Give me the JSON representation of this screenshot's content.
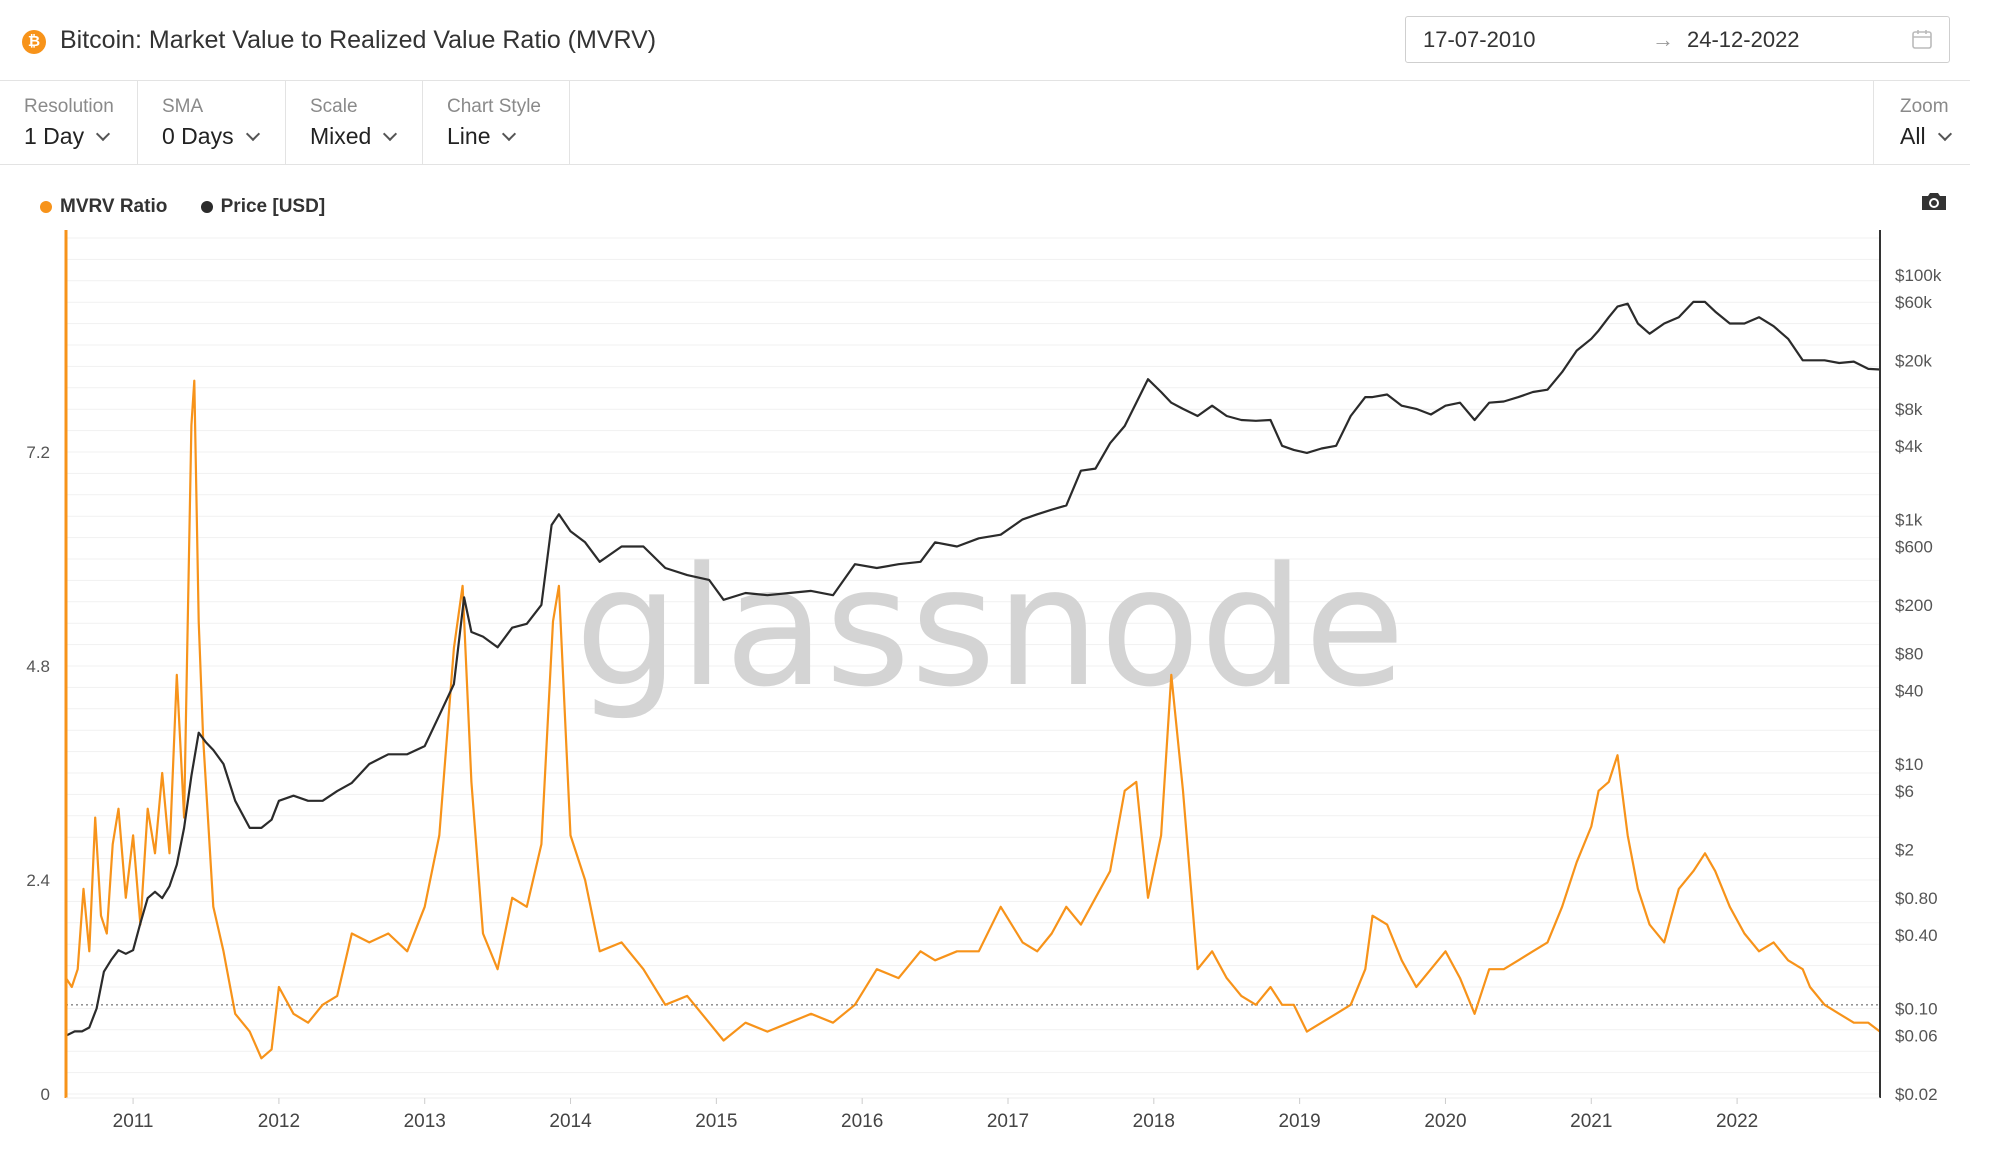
{
  "header": {
    "title": "Bitcoin: Market Value to Realized Value Ratio (MVRV)",
    "logo_glyph": "₿",
    "date_start": "17-07-2010",
    "date_arrow": "→",
    "date_end": "24-12-2022"
  },
  "controls": {
    "resolution": {
      "label": "Resolution",
      "value": "1 Day"
    },
    "sma": {
      "label": "SMA",
      "value": "0 Days"
    },
    "scale": {
      "label": "Scale",
      "value": "Mixed"
    },
    "chart_style": {
      "label": "Chart Style",
      "value": "Line"
    },
    "zoom": {
      "label": "Zoom",
      "value": "All"
    }
  },
  "legend": {
    "mvrv": "MVRV Ratio",
    "price": "Price [USD]"
  },
  "watermark": "glassnode",
  "colors": {
    "mvrv": "#f7931a",
    "price": "#2b2b2b",
    "brand": "#f7931a"
  },
  "chart_data": {
    "type": "line",
    "x_ticks": [
      "2011",
      "2012",
      "2013",
      "2014",
      "2015",
      "2016",
      "2017",
      "2018",
      "2019",
      "2020",
      "2021",
      "2022"
    ],
    "x_range": [
      2010.54,
      2022.98
    ],
    "reference_line": 1,
    "left_axis": {
      "ticks": [
        "0",
        "2.4",
        "4.8",
        "7.2"
      ],
      "tick_values": [
        0,
        2.4,
        4.8,
        7.2
      ],
      "range": [
        0,
        9.6
      ],
      "scale": "linear"
    },
    "right_axis": {
      "ticks": [
        "$100k",
        "$60k",
        "$20k",
        "$8k",
        "$4k",
        "$1k",
        "$600",
        "$200",
        "$80",
        "$40",
        "$10",
        "$6",
        "$2",
        "$0.80",
        "$0.40",
        "$0.10",
        "$0.06",
        "$0.02"
      ],
      "tick_values": [
        100000,
        60000,
        20000,
        8000,
        4000,
        1000,
        600,
        200,
        80,
        40,
        10,
        6,
        2,
        0.8,
        0.4,
        0.1,
        0.06,
        0.02
      ],
      "range": [
        0.02,
        200000
      ],
      "scale": "log"
    },
    "series": [
      {
        "name": "MVRV Ratio",
        "axis": "left",
        "x": [
          2010.54,
          2010.58,
          2010.62,
          2010.66,
          2010.7,
          2010.74,
          2010.78,
          2010.82,
          2010.86,
          2010.9,
          2010.95,
          2011.0,
          2011.05,
          2011.1,
          2011.15,
          2011.2,
          2011.25,
          2011.3,
          2011.35,
          2011.4,
          2011.42,
          2011.45,
          2011.48,
          2011.55,
          2011.62,
          2011.7,
          2011.8,
          2011.88,
          2011.95,
          2012.0,
          2012.1,
          2012.2,
          2012.3,
          2012.4,
          2012.5,
          2012.62,
          2012.75,
          2012.88,
          2013.0,
          2013.1,
          2013.2,
          2013.26,
          2013.32,
          2013.4,
          2013.5,
          2013.6,
          2013.7,
          2013.8,
          2013.88,
          2013.92,
          2014.0,
          2014.1,
          2014.2,
          2014.35,
          2014.5,
          2014.65,
          2014.8,
          2014.95,
          2015.05,
          2015.2,
          2015.35,
          2015.5,
          2015.65,
          2015.8,
          2015.95,
          2016.1,
          2016.25,
          2016.4,
          2016.5,
          2016.65,
          2016.8,
          2016.95,
          2017.1,
          2017.2,
          2017.3,
          2017.4,
          2017.5,
          2017.6,
          2017.7,
          2017.8,
          2017.88,
          2017.96,
          2018.05,
          2018.12,
          2018.2,
          2018.3,
          2018.4,
          2018.5,
          2018.6,
          2018.7,
          2018.8,
          2018.88,
          2018.96,
          2019.05,
          2019.15,
          2019.25,
          2019.35,
          2019.45,
          2019.5,
          2019.6,
          2019.7,
          2019.8,
          2019.9,
          2020.0,
          2020.1,
          2020.2,
          2020.3,
          2020.4,
          2020.5,
          2020.6,
          2020.7,
          2020.8,
          2020.9,
          2021.0,
          2021.05,
          2021.12,
          2021.18,
          2021.25,
          2021.32,
          2021.4,
          2021.5,
          2021.6,
          2021.7,
          2021.78,
          2021.85,
          2021.95,
          2022.05,
          2022.15,
          2022.25,
          2022.35,
          2022.45,
          2022.5,
          2022.6,
          2022.7,
          2022.8,
          2022.9,
          2022.98
        ],
        "values": [
          1.3,
          1.2,
          1.4,
          2.3,
          1.6,
          3.1,
          2.0,
          1.8,
          2.8,
          3.2,
          2.2,
          2.9,
          1.9,
          3.2,
          2.7,
          3.6,
          2.7,
          4.7,
          3.1,
          7.5,
          8.0,
          5.3,
          4.0,
          2.1,
          1.6,
          0.9,
          0.7,
          0.4,
          0.5,
          1.2,
          0.9,
          0.8,
          1.0,
          1.1,
          1.8,
          1.7,
          1.8,
          1.6,
          2.1,
          2.9,
          5.0,
          5.7,
          3.5,
          1.8,
          1.4,
          2.2,
          2.1,
          2.8,
          5.3,
          5.7,
          2.9,
          2.4,
          1.6,
          1.7,
          1.4,
          1.0,
          1.1,
          0.8,
          0.6,
          0.8,
          0.7,
          0.8,
          0.9,
          0.8,
          1.0,
          1.4,
          1.3,
          1.6,
          1.5,
          1.6,
          1.6,
          2.1,
          1.7,
          1.6,
          1.8,
          2.1,
          1.9,
          2.2,
          2.5,
          3.4,
          3.5,
          2.2,
          2.9,
          4.7,
          3.4,
          1.4,
          1.6,
          1.3,
          1.1,
          1.0,
          1.2,
          1.0,
          1.0,
          0.7,
          0.8,
          0.9,
          1.0,
          1.4,
          2.0,
          1.9,
          1.5,
          1.2,
          1.4,
          1.6,
          1.3,
          0.9,
          1.4,
          1.4,
          1.5,
          1.6,
          1.7,
          2.1,
          2.6,
          3.0,
          3.4,
          3.5,
          3.8,
          2.9,
          2.3,
          1.9,
          1.7,
          2.3,
          2.5,
          2.7,
          2.5,
          2.1,
          1.8,
          1.6,
          1.7,
          1.5,
          1.4,
          1.2,
          1.0,
          0.9,
          0.8,
          0.8,
          0.7
        ]
      },
      {
        "name": "Price [USD]",
        "axis": "right",
        "x": [
          2010.54,
          2010.6,
          2010.65,
          2010.7,
          2010.75,
          2010.8,
          2010.85,
          2010.9,
          2010.95,
          2011.0,
          2011.05,
          2011.1,
          2011.15,
          2011.2,
          2011.25,
          2011.3,
          2011.35,
          2011.4,
          2011.45,
          2011.5,
          2011.55,
          2011.62,
          2011.7,
          2011.8,
          2011.88,
          2011.95,
          2012.0,
          2012.1,
          2012.2,
          2012.3,
          2012.4,
          2012.5,
          2012.62,
          2012.75,
          2012.88,
          2013.0,
          2013.1,
          2013.2,
          2013.27,
          2013.32,
          2013.4,
          2013.5,
          2013.6,
          2013.7,
          2013.8,
          2013.87,
          2013.92,
          2014.0,
          2014.1,
          2014.2,
          2014.35,
          2014.5,
          2014.65,
          2014.8,
          2014.95,
          2015.05,
          2015.2,
          2015.35,
          2015.5,
          2015.65,
          2015.8,
          2015.95,
          2016.1,
          2016.25,
          2016.4,
          2016.5,
          2016.65,
          2016.8,
          2016.95,
          2017.1,
          2017.2,
          2017.3,
          2017.4,
          2017.5,
          2017.6,
          2017.7,
          2017.8,
          2017.88,
          2017.96,
          2018.05,
          2018.12,
          2018.2,
          2018.3,
          2018.4,
          2018.5,
          2018.6,
          2018.7,
          2018.8,
          2018.88,
          2018.96,
          2019.05,
          2019.15,
          2019.25,
          2019.35,
          2019.45,
          2019.5,
          2019.6,
          2019.7,
          2019.8,
          2019.9,
          2020.0,
          2020.1,
          2020.2,
          2020.3,
          2020.4,
          2020.5,
          2020.6,
          2020.7,
          2020.8,
          2020.9,
          2021.0,
          2021.05,
          2021.12,
          2021.18,
          2021.25,
          2021.32,
          2021.4,
          2021.5,
          2021.6,
          2021.7,
          2021.78,
          2021.85,
          2021.95,
          2022.05,
          2022.15,
          2022.25,
          2022.35,
          2022.45,
          2022.5,
          2022.6,
          2022.7,
          2022.8,
          2022.9,
          2022.98
        ],
        "values": [
          0.06,
          0.065,
          0.065,
          0.07,
          0.1,
          0.2,
          0.25,
          0.3,
          0.28,
          0.3,
          0.5,
          0.8,
          0.9,
          0.8,
          1.0,
          1.5,
          3.0,
          8.0,
          18,
          15,
          13,
          10,
          5,
          3,
          3,
          3.5,
          5,
          5.5,
          5,
          5,
          6,
          7,
          10,
          12,
          12,
          14,
          25,
          45,
          230,
          120,
          110,
          90,
          130,
          140,
          200,
          900,
          1100,
          800,
          650,
          450,
          600,
          600,
          400,
          350,
          320,
          220,
          250,
          240,
          250,
          260,
          240,
          430,
          400,
          430,
          450,
          650,
          600,
          700,
          750,
          1000,
          1100,
          1200,
          1300,
          2500,
          2600,
          4200,
          5800,
          9000,
          14000,
          11000,
          9000,
          8000,
          7000,
          8500,
          7000,
          6500,
          6400,
          6500,
          4000,
          3700,
          3500,
          3800,
          4000,
          7000,
          10000,
          10000,
          10500,
          8500,
          8000,
          7200,
          8500,
          9000,
          6500,
          9000,
          9200,
          10000,
          11000,
          11500,
          16000,
          24000,
          30000,
          35000,
          45000,
          55000,
          58000,
          40000,
          33000,
          40000,
          45000,
          60000,
          60000,
          50000,
          40000,
          40000,
          45000,
          38000,
          30000,
          20000,
          20000,
          20000,
          19000,
          19500,
          17000,
          16800
        ]
      }
    ]
  }
}
